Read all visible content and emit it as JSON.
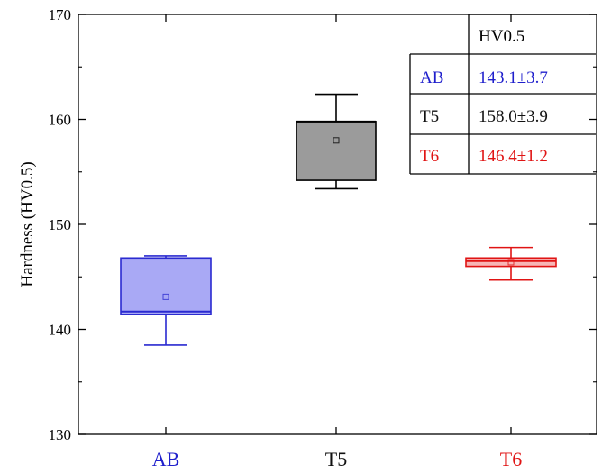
{
  "chart_data": {
    "type": "box",
    "ylabel": "Hardness (HV0.5)",
    "ylim": [
      130,
      170
    ],
    "yticks": [
      130,
      140,
      150,
      160,
      170
    ],
    "categories": [
      "AB",
      "T5",
      "T6"
    ],
    "category_colors": [
      "#1f1fcc",
      "#111111",
      "#e01414"
    ],
    "boxes": [
      {
        "category": "AB",
        "whisker_low": 138.5,
        "q1": 141.4,
        "median": 141.7,
        "q3": 146.8,
        "whisker_high": 147.0,
        "mean": 143.1,
        "fill": "#a9a9f5",
        "stroke": "#2a2ad0"
      },
      {
        "category": "T5",
        "whisker_low": 153.4,
        "q1": 154.2,
        "median": 159.8,
        "q3": 159.8,
        "whisker_high": 162.4,
        "mean": 158.0,
        "fill": "#9b9b9b",
        "stroke": "#000000"
      },
      {
        "category": "T6",
        "whisker_low": 144.7,
        "q1": 146.0,
        "median": 146.5,
        "q3": 146.8,
        "whisker_high": 147.8,
        "mean": 146.4,
        "fill": "#f7b6b6",
        "stroke": "#e01414"
      }
    ],
    "inset_table": {
      "header": [
        "",
        "HV0.5"
      ],
      "rows": [
        {
          "label": "AB",
          "value": "143.1±3.7",
          "color": "#1f1fcc"
        },
        {
          "label": "T5",
          "value": "158.0±3.9",
          "color": "#111111"
        },
        {
          "label": "T6",
          "value": "146.4±1.2",
          "color": "#e01414"
        }
      ]
    }
  }
}
